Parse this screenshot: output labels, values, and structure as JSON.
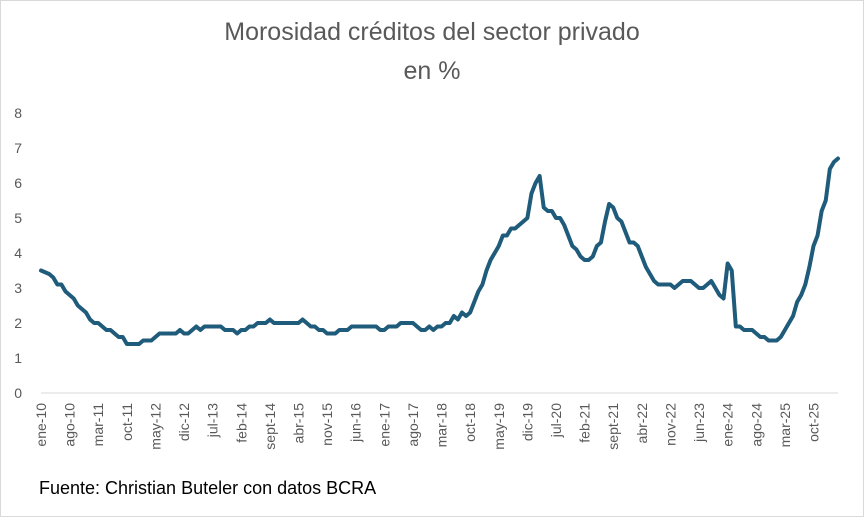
{
  "chart_data": {
    "type": "line",
    "title": "Morosidad créditos del sector privado",
    "subtitle": "en %",
    "source": "Fuente: Christian Buteler con datos BCRA",
    "xlabel": "",
    "ylabel": "",
    "ylim": [
      0,
      8
    ],
    "yticks": [
      "0",
      "1",
      "2",
      "3",
      "4",
      "5",
      "6",
      "7",
      "8"
    ],
    "grid": false,
    "legend": "none",
    "x_start": "ene-10",
    "x_end": "feb-26",
    "xticks": [
      "ene-10",
      "ago-10",
      "mar-11",
      "oct-11",
      "may-12",
      "dic-12",
      "jul-13",
      "feb-14",
      "sept-14",
      "abr-15",
      "nov-15",
      "jun-16",
      "ene-17",
      "ago-17",
      "mar-18",
      "oct-18",
      "may-19",
      "dic-19",
      "jul-20",
      "feb-21",
      "sept-21",
      "abr-22",
      "nov-22",
      "jun-23",
      "ene-24",
      "ago-24",
      "mar-25",
      "oct-25"
    ],
    "line_color": "#1f5b7a",
    "series": [
      {
        "name": "",
        "values": [
          3.5,
          3.45,
          3.4,
          3.3,
          3.1,
          3.1,
          2.9,
          2.8,
          2.7,
          2.5,
          2.4,
          2.3,
          2.1,
          2.0,
          2.0,
          1.9,
          1.8,
          1.8,
          1.7,
          1.6,
          1.6,
          1.4,
          1.4,
          1.4,
          1.4,
          1.5,
          1.5,
          1.5,
          1.6,
          1.7,
          1.7,
          1.7,
          1.7,
          1.7,
          1.8,
          1.7,
          1.7,
          1.8,
          1.9,
          1.8,
          1.9,
          1.9,
          1.9,
          1.9,
          1.9,
          1.8,
          1.8,
          1.8,
          1.7,
          1.8,
          1.8,
          1.9,
          1.9,
          2.0,
          2.0,
          2.0,
          2.1,
          2.0,
          2.0,
          2.0,
          2.0,
          2.0,
          2.0,
          2.0,
          2.1,
          2.0,
          1.9,
          1.9,
          1.8,
          1.8,
          1.7,
          1.7,
          1.7,
          1.8,
          1.8,
          1.8,
          1.9,
          1.9,
          1.9,
          1.9,
          1.9,
          1.9,
          1.9,
          1.8,
          1.8,
          1.9,
          1.9,
          1.9,
          2.0,
          2.0,
          2.0,
          2.0,
          1.9,
          1.8,
          1.8,
          1.9,
          1.8,
          1.9,
          1.9,
          2.0,
          2.0,
          2.2,
          2.1,
          2.3,
          2.2,
          2.3,
          2.6,
          2.9,
          3.1,
          3.5,
          3.8,
          4.0,
          4.2,
          4.5,
          4.5,
          4.7,
          4.7,
          4.8,
          4.9,
          5.0,
          5.7,
          6.0,
          6.2,
          5.3,
          5.2,
          5.2,
          5.0,
          5.0,
          4.8,
          4.5,
          4.2,
          4.1,
          3.9,
          3.8,
          3.8,
          3.9,
          4.2,
          4.3,
          4.9,
          5.4,
          5.3,
          5.0,
          4.9,
          4.6,
          4.3,
          4.3,
          4.2,
          3.9,
          3.6,
          3.4,
          3.2,
          3.1,
          3.1,
          3.1,
          3.1,
          3.0,
          3.1,
          3.2,
          3.2,
          3.2,
          3.1,
          3.0,
          3.0,
          3.1,
          3.2,
          3.0,
          2.8,
          2.7,
          3.7,
          3.5,
          1.9,
          1.9,
          1.8,
          1.8,
          1.8,
          1.7,
          1.6,
          1.6,
          1.5,
          1.5,
          1.5,
          1.6,
          1.8,
          2.0,
          2.2,
          2.6,
          2.8,
          3.1,
          3.6,
          4.2,
          4.5,
          5.2,
          5.5,
          6.4,
          6.6,
          6.7
        ]
      }
    ]
  }
}
